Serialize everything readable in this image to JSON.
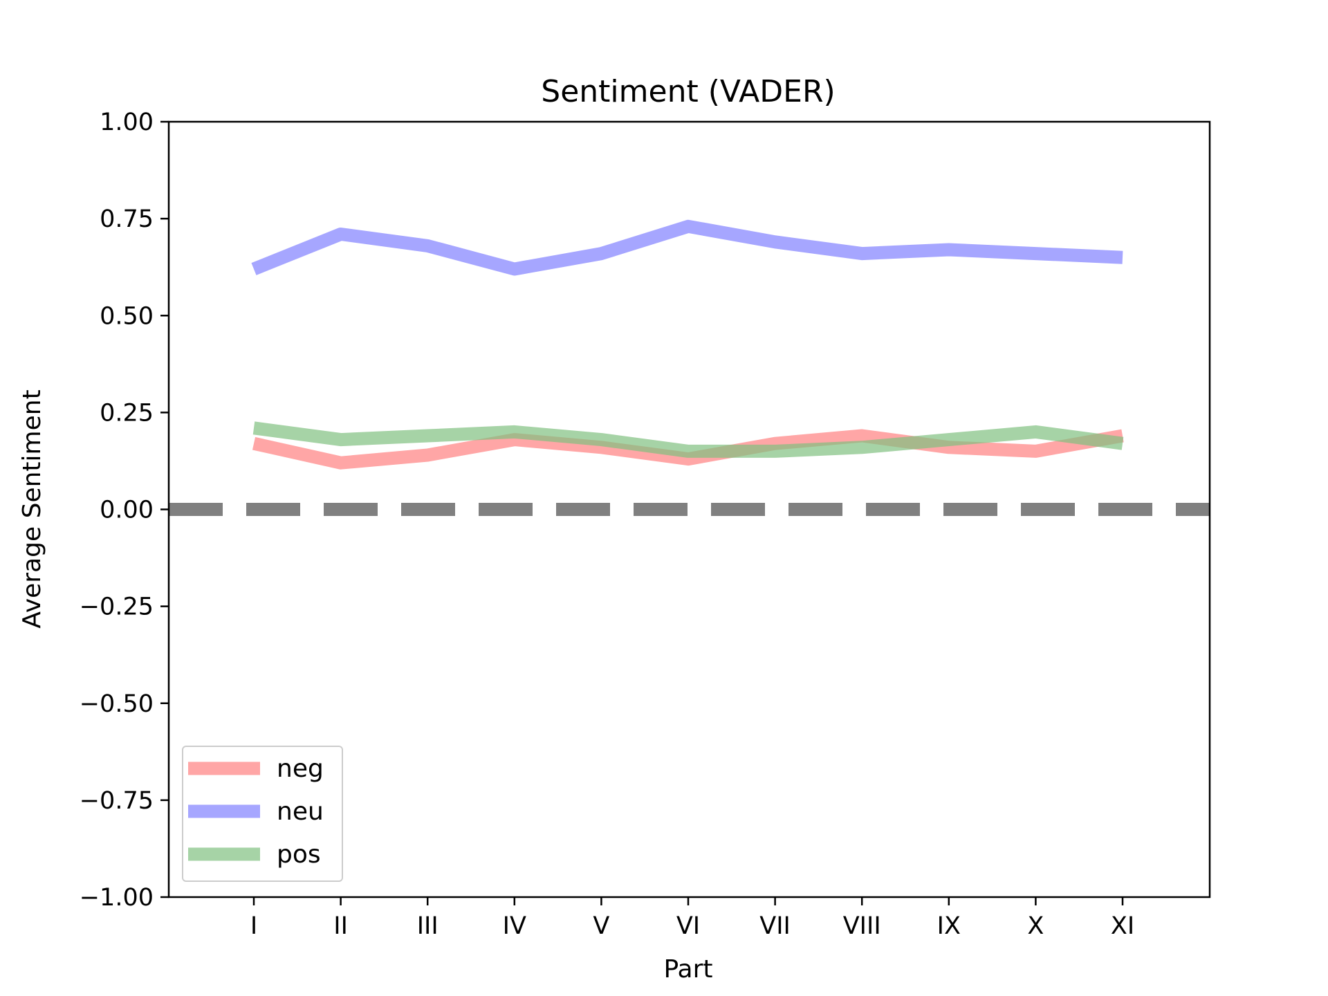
{
  "chart_data": {
    "type": "line",
    "title": "Sentiment (VADER)",
    "xlabel": "Part",
    "ylabel": "Average Sentiment",
    "categories": [
      "I",
      "II",
      "III",
      "IV",
      "V",
      "VI",
      "VII",
      "VIII",
      "IX",
      "X",
      "XI"
    ],
    "ylim": [
      -1.0,
      1.0
    ],
    "yticks": [
      "−1.00",
      "−0.75",
      "−0.50",
      "−0.25",
      "0.00",
      "0.25",
      "0.50",
      "0.75",
      "1.00"
    ],
    "ytick_values": [
      -1.0,
      -0.75,
      -0.5,
      -0.25,
      0.0,
      0.25,
      0.5,
      0.75,
      1.0
    ],
    "grid": false,
    "legend_position": "lower-left",
    "reference_line": {
      "y": 0.0,
      "style": "dashed",
      "color": "#808080"
    },
    "series": [
      {
        "name": "neg",
        "color": "#ff8080",
        "values": [
          0.17,
          0.12,
          0.14,
          0.18,
          0.16,
          0.13,
          0.17,
          0.19,
          0.16,
          0.15,
          0.19
        ]
      },
      {
        "name": "neu",
        "color": "#8080ff",
        "values": [
          0.62,
          0.71,
          0.68,
          0.62,
          0.66,
          0.73,
          0.69,
          0.66,
          0.67,
          0.66,
          0.65
        ]
      },
      {
        "name": "pos",
        "color": "#80c080",
        "values": [
          0.21,
          0.18,
          0.19,
          0.2,
          0.18,
          0.15,
          0.15,
          0.16,
          0.18,
          0.2,
          0.17
        ]
      }
    ]
  }
}
